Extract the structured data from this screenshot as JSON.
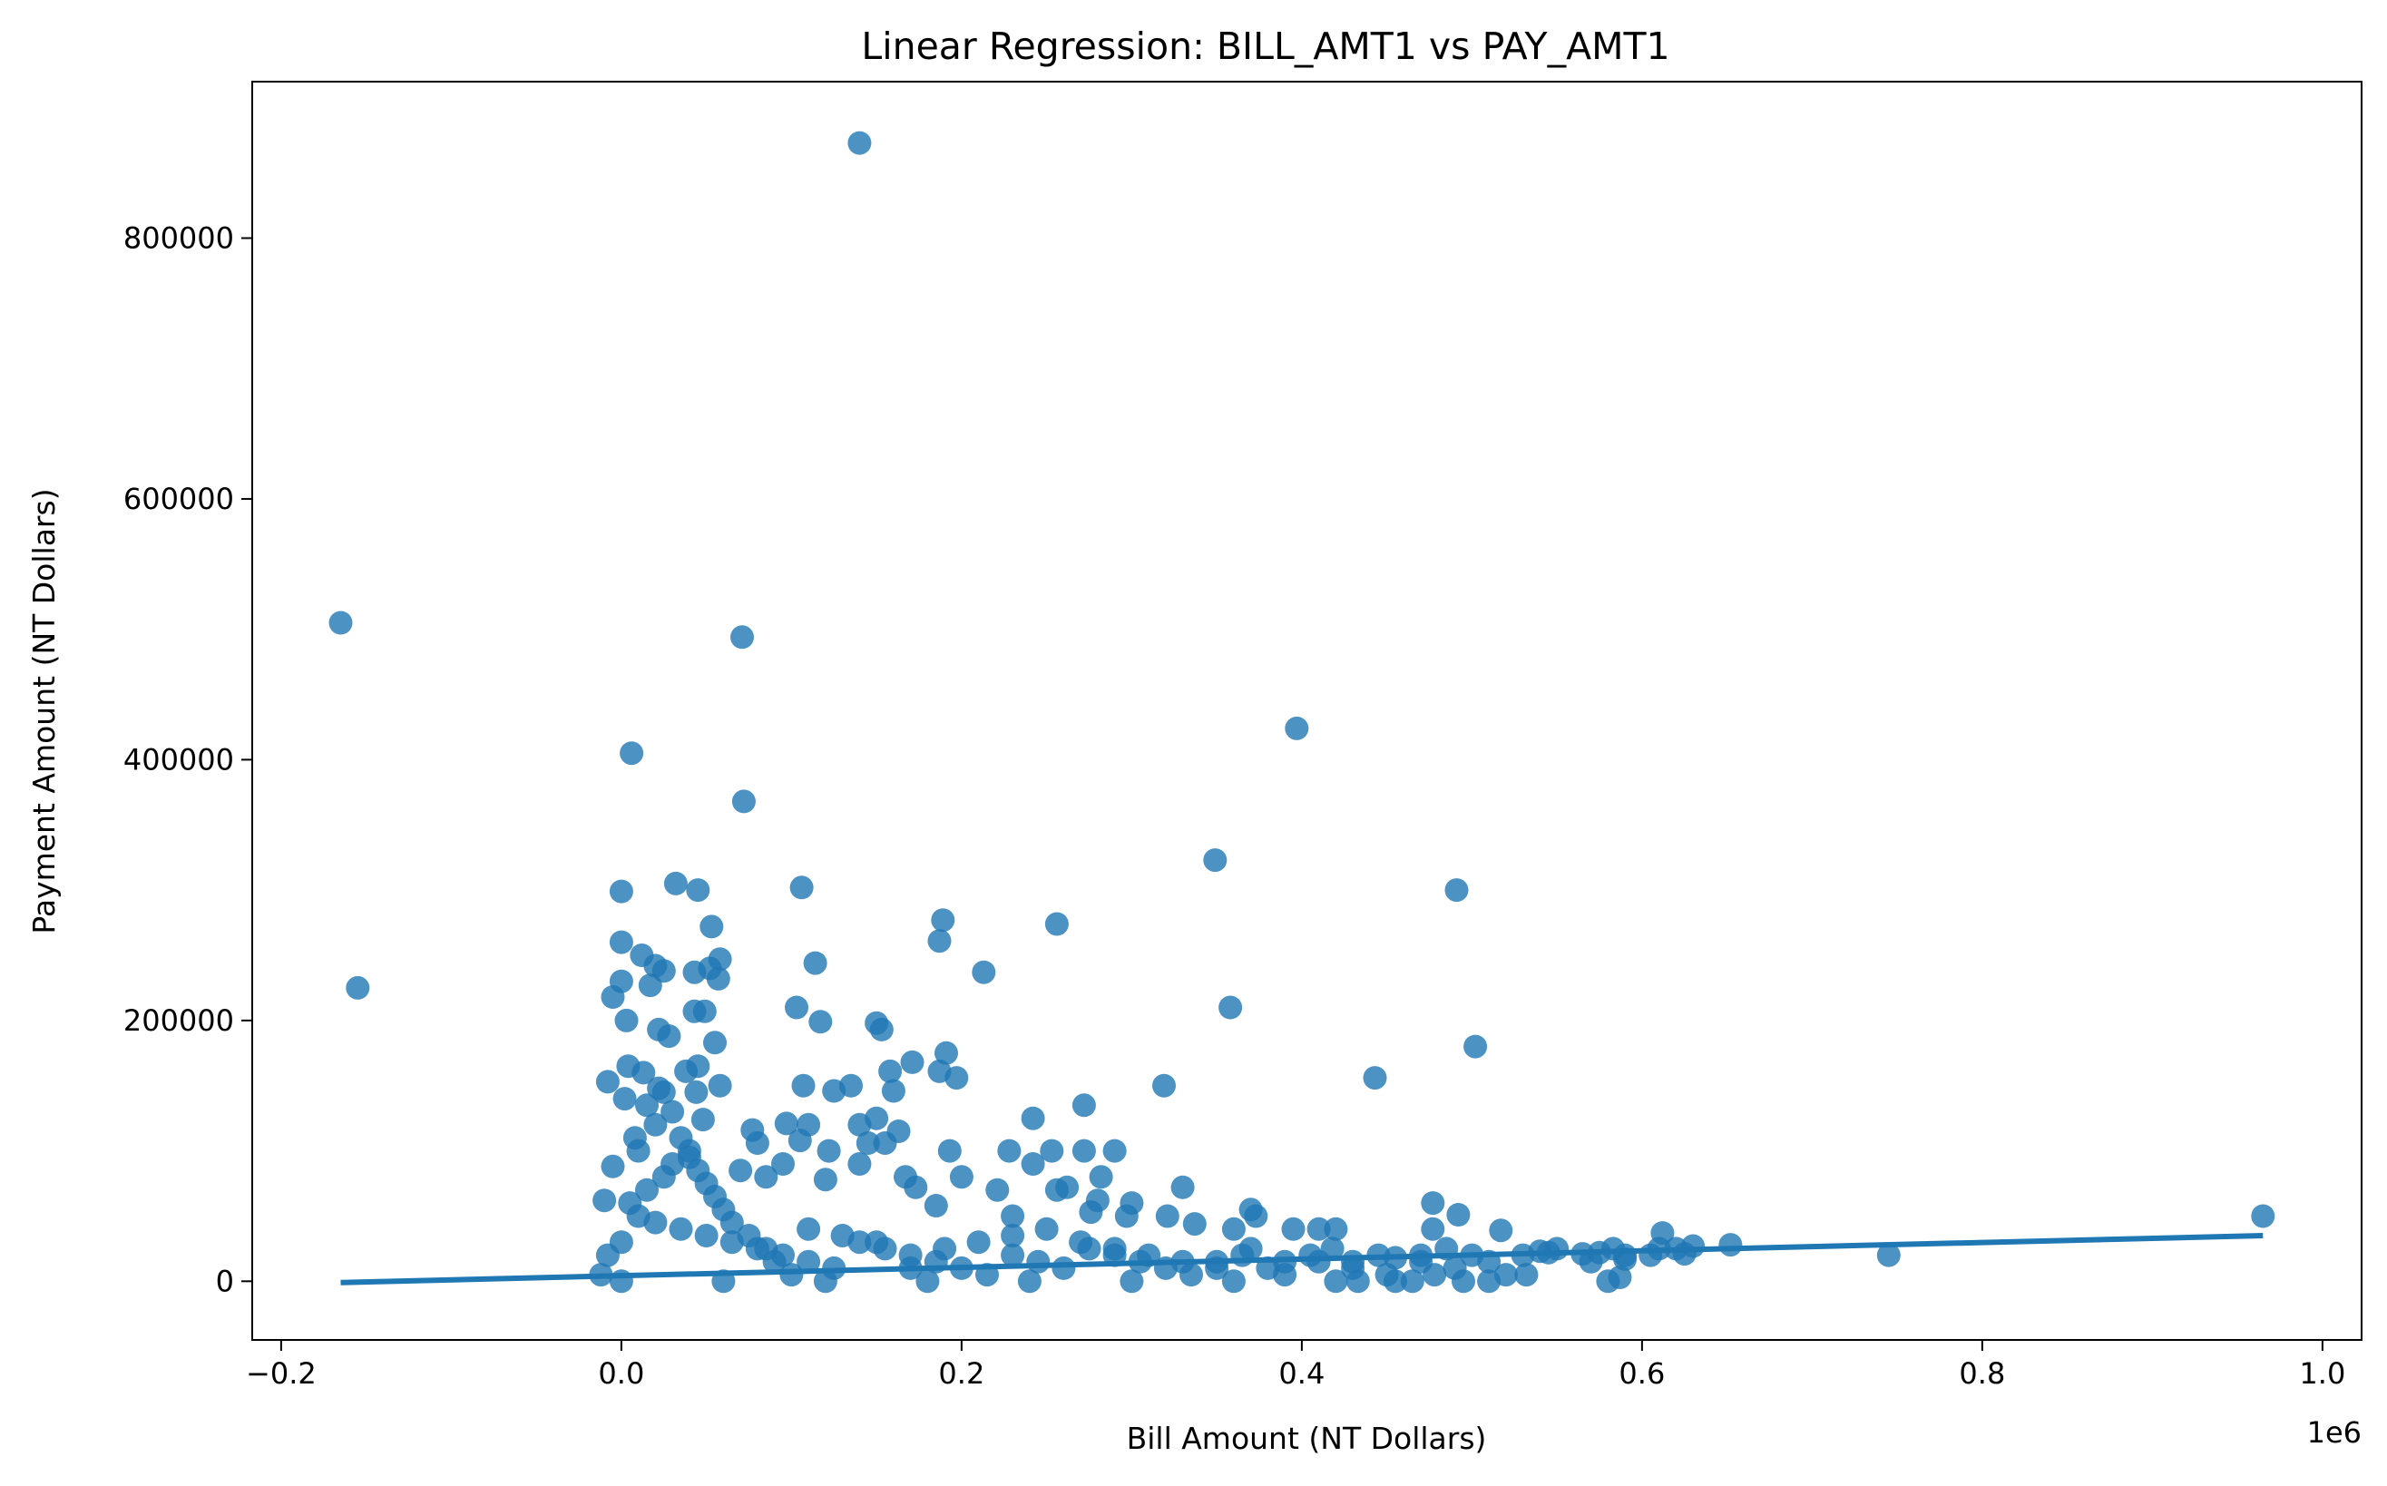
{
  "colors": {
    "points": "#1f77b4",
    "axis": "#000000",
    "background": "#ffffff"
  },
  "chart_data": {
    "type": "scatter",
    "title": "Linear Regression: BILL_AMT1 vs PAY_AMT1",
    "xlabel": "Bill Amount (NT Dollars)",
    "ylabel": "Payment Amount (NT Dollars)",
    "x_offset_label": "1e6",
    "x_scale": 1000000,
    "xlim": [
      -0.217,
      1.023
    ],
    "ylim": [
      -45000,
      920000
    ],
    "x_ticks": [
      -0.2,
      0.0,
      0.2,
      0.4,
      0.6,
      0.8,
      1.0
    ],
    "x_tick_labels": [
      "−0.2",
      "0.0",
      "0.2",
      "0.4",
      "0.6",
      "0.8",
      "1.0"
    ],
    "y_ticks": [
      0,
      200000,
      400000,
      600000,
      800000
    ],
    "y_tick_labels": [
      "0",
      "200000",
      "400000",
      "600000",
      "800000"
    ],
    "grid": false,
    "regression_line": {
      "x": [
        -0.165,
        0.965
      ],
      "y": [
        -1000,
        35000
      ]
    },
    "series": [
      {
        "points": [
          [
            0.14,
            873000
          ],
          [
            -0.165,
            505000
          ],
          [
            0.071,
            494000
          ],
          [
            0.397,
            424000
          ],
          [
            0.006,
            405000
          ],
          [
            0.072,
            368000
          ],
          [
            0.349,
            323000
          ],
          [
            0.032,
            305000
          ],
          [
            0.106,
            302000
          ],
          [
            0.045,
            300000
          ],
          [
            0.0,
            299000
          ],
          [
            0.491,
            300000
          ],
          [
            0.189,
            277000
          ],
          [
            0.256,
            274000
          ],
          [
            0.053,
            272000
          ],
          [
            -0.155,
            225000
          ],
          [
            0.0,
            260000
          ],
          [
            0.187,
            261000
          ],
          [
            0.058,
            247000
          ],
          [
            0.012,
            250000
          ],
          [
            0.114,
            244000
          ],
          [
            0.213,
            237000
          ],
          [
            0.02,
            242000
          ],
          [
            0.052,
            240000
          ],
          [
            0.043,
            237000
          ],
          [
            0.025,
            238000
          ],
          [
            0.057,
            232000
          ],
          [
            0.0,
            230000
          ],
          [
            0.017,
            227000
          ],
          [
            -0.005,
            218000
          ],
          [
            0.358,
            210000
          ],
          [
            0.103,
            210000
          ],
          [
            0.049,
            207000
          ],
          [
            0.043,
            207000
          ],
          [
            0.117,
            199000
          ],
          [
            0.15,
            198000
          ],
          [
            0.153,
            193000
          ],
          [
            0.022,
            193000
          ],
          [
            0.028,
            188000
          ],
          [
            0.003,
            200000
          ],
          [
            0.502,
            180000
          ],
          [
            0.055,
            183000
          ],
          [
            0.191,
            175000
          ],
          [
            0.171,
            168000
          ],
          [
            0.045,
            165000
          ],
          [
            0.187,
            161000
          ],
          [
            0.158,
            161000
          ],
          [
            0.038,
            161000
          ],
          [
            0.004,
            165000
          ],
          [
            0.013,
            160000
          ],
          [
            0.443,
            156000
          ],
          [
            0.197,
            156000
          ],
          [
            0.058,
            150000
          ],
          [
            0.107,
            150000
          ],
          [
            0.135,
            150000
          ],
          [
            0.319,
            150000
          ],
          [
            0.16,
            146000
          ],
          [
            0.125,
            146000
          ],
          [
            -0.008,
            153000
          ],
          [
            0.022,
            148000
          ],
          [
            0.044,
            145000
          ],
          [
            0.002,
            140000
          ],
          [
            0.272,
            135000
          ],
          [
            0.242,
            125000
          ],
          [
            0.15,
            125000
          ],
          [
            0.048,
            124000
          ],
          [
            0.097,
            121000
          ],
          [
            0.14,
            120000
          ],
          [
            0.11,
            120000
          ],
          [
            0.163,
            115000
          ],
          [
            0.077,
            116000
          ],
          [
            0.155,
            106000
          ],
          [
            0.145,
            106000
          ],
          [
            0.105,
            108000
          ],
          [
            0.08,
            106000
          ],
          [
            0.29,
            100000
          ],
          [
            0.228,
            100000
          ],
          [
            0.253,
            100000
          ],
          [
            0.272,
            100000
          ],
          [
            0.193,
            100000
          ],
          [
            0.122,
            100000
          ],
          [
            0.14,
            90000
          ],
          [
            0.173,
            72000
          ],
          [
            0.2,
            80000
          ],
          [
            0.242,
            90000
          ],
          [
            0.282,
            80000
          ],
          [
            0.262,
            72000
          ],
          [
            0.33,
            72000
          ],
          [
            0.256,
            70000
          ],
          [
            0.221,
            70000
          ],
          [
            0.167,
            80000
          ],
          [
            0.12,
            78000
          ],
          [
            0.095,
            90000
          ],
          [
            0.085,
            80000
          ],
          [
            0.07,
            85000
          ],
          [
            0.477,
            60000
          ],
          [
            0.3,
            60000
          ],
          [
            0.28,
            62000
          ],
          [
            0.23,
            50000
          ],
          [
            0.185,
            58000
          ],
          [
            0.37,
            55000
          ],
          [
            0.373,
            50000
          ],
          [
            0.297,
            50000
          ],
          [
            0.321,
            50000
          ],
          [
            0.276,
            53000
          ],
          [
            0.492,
            51000
          ],
          [
            0.477,
            40000
          ],
          [
            0.41,
            40000
          ],
          [
            0.395,
            40000
          ],
          [
            0.42,
            40000
          ],
          [
            0.36,
            40000
          ],
          [
            0.337,
            44000
          ],
          [
            0.517,
            39000
          ],
          [
            0.612,
            37000
          ],
          [
            0.583,
            25000
          ],
          [
            0.652,
            28000
          ],
          [
            0.965,
            50000
          ],
          [
            0.745,
            20000
          ],
          [
            0.63,
            27000
          ],
          [
            0.575,
            22000
          ],
          [
            0.565,
            21000
          ],
          [
            0.545,
            22000
          ],
          [
            0.54,
            23000
          ],
          [
            0.605,
            20000
          ],
          [
            0.61,
            25000
          ],
          [
            0.625,
            21000
          ],
          [
            0.59,
            17000
          ],
          [
            0.58,
            0
          ],
          [
            0.587,
            3000
          ],
          [
            0.52,
            5000
          ],
          [
            0.532,
            5000
          ],
          [
            0.51,
            0
          ],
          [
            0.495,
            0
          ],
          [
            0.465,
            0
          ],
          [
            0.455,
            0
          ],
          [
            0.433,
            0
          ],
          [
            0.478,
            5000
          ],
          [
            0.5,
            20000
          ],
          [
            0.485,
            25000
          ],
          [
            0.47,
            15000
          ],
          [
            0.455,
            18000
          ],
          [
            0.445,
            20000
          ],
          [
            0.43,
            15000
          ],
          [
            0.418,
            25000
          ],
          [
            0.405,
            20000
          ],
          [
            0.39,
            15000
          ],
          [
            0.38,
            10000
          ],
          [
            0.365,
            20000
          ],
          [
            0.35,
            15000
          ],
          [
            0.335,
            5000
          ],
          [
            0.32,
            10000
          ],
          [
            0.305,
            15000
          ],
          [
            0.29,
            20000
          ],
          [
            0.275,
            25000
          ],
          [
            0.26,
            10000
          ],
          [
            0.245,
            15000
          ],
          [
            0.23,
            20000
          ],
          [
            0.215,
            5000
          ],
          [
            0.2,
            10000
          ],
          [
            0.185,
            15000
          ],
          [
            0.17,
            20000
          ],
          [
            0.155,
            25000
          ],
          [
            0.14,
            30000
          ],
          [
            0.125,
            10000
          ],
          [
            0.11,
            15000
          ],
          [
            0.095,
            20000
          ],
          [
            0.08,
            25000
          ],
          [
            0.065,
            30000
          ],
          [
            0.05,
            35000
          ],
          [
            0.035,
            40000
          ],
          [
            0.02,
            45000
          ],
          [
            0.01,
            50000
          ],
          [
            0.005,
            60000
          ],
          [
            0.015,
            70000
          ],
          [
            0.025,
            80000
          ],
          [
            0.03,
            90000
          ],
          [
            0.04,
            100000
          ],
          [
            0.008,
            110000
          ],
          [
            -0.01,
            62000
          ],
          [
            -0.005,
            88000
          ],
          [
            -0.008,
            20000
          ],
          [
            -0.012,
            5000
          ],
          [
            0.0,
            0
          ],
          [
            0.06,
            0
          ],
          [
            0.12,
            0
          ],
          [
            0.18,
            0
          ],
          [
            0.24,
            0
          ],
          [
            0.3,
            0
          ],
          [
            0.36,
            0
          ],
          [
            0.42,
            0
          ],
          [
            0.0,
            30000
          ],
          [
            0.01,
            100000
          ],
          [
            0.02,
            120000
          ],
          [
            0.015,
            135000
          ],
          [
            0.025,
            145000
          ],
          [
            0.03,
            130000
          ],
          [
            0.035,
            110000
          ],
          [
            0.04,
            95000
          ],
          [
            0.045,
            85000
          ],
          [
            0.05,
            75000
          ],
          [
            0.055,
            65000
          ],
          [
            0.06,
            55000
          ],
          [
            0.065,
            45000
          ],
          [
            0.075,
            35000
          ],
          [
            0.085,
            25000
          ],
          [
            0.09,
            15000
          ],
          [
            0.1,
            5000
          ],
          [
            0.11,
            40000
          ],
          [
            0.13,
            35000
          ],
          [
            0.15,
            30000
          ],
          [
            0.17,
            10000
          ],
          [
            0.19,
            25000
          ],
          [
            0.21,
            30000
          ],
          [
            0.23,
            35000
          ],
          [
            0.25,
            40000
          ],
          [
            0.27,
            30000
          ],
          [
            0.29,
            25000
          ],
          [
            0.31,
            20000
          ],
          [
            0.33,
            15000
          ],
          [
            0.35,
            10000
          ],
          [
            0.37,
            25000
          ],
          [
            0.39,
            5000
          ],
          [
            0.41,
            15000
          ],
          [
            0.43,
            10000
          ],
          [
            0.45,
            5000
          ],
          [
            0.47,
            20000
          ],
          [
            0.49,
            10000
          ],
          [
            0.51,
            15000
          ],
          [
            0.53,
            20000
          ],
          [
            0.55,
            25000
          ],
          [
            0.57,
            15000
          ],
          [
            0.59,
            20000
          ],
          [
            0.62,
            25000
          ]
        ]
      }
    ]
  }
}
